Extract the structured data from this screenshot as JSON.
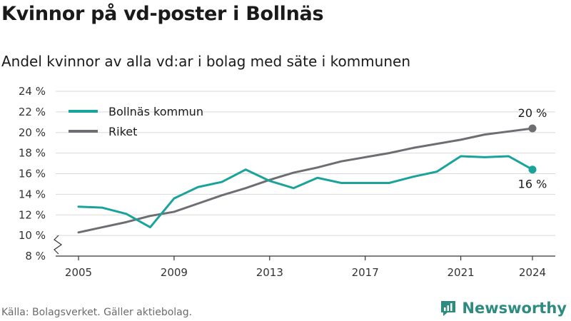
{
  "title": "Kvinnor på vd-poster i Bollnäs",
  "subtitle": "Andel kvinnor av alla vd:ar i bolag med säte i kommunen",
  "source": "Källa: Bolagsverket. Gäller aktiebolag.",
  "brand": {
    "name": "Newsworthy",
    "icon": "newsworthy-logo-icon"
  },
  "colors": {
    "bollnas": "#1aa39a",
    "riket": "#6e6d72",
    "grid": "#d9d9d9",
    "axis": "#333333"
  },
  "chart_data": {
    "type": "line",
    "ylim": [
      8,
      24
    ],
    "y_ticks": [
      8,
      10,
      12,
      14,
      16,
      18,
      20,
      22,
      24
    ],
    "y_tick_suffix": " %",
    "x_range": [
      2005,
      2024
    ],
    "x_ticks": [
      2005,
      2009,
      2013,
      2017,
      2021,
      2024
    ],
    "grid": true,
    "axis_break": true,
    "legend_position": "top-left",
    "x": [
      2005,
      2006,
      2007,
      2008,
      2009,
      2010,
      2011,
      2012,
      2013,
      2014,
      2015,
      2016,
      2017,
      2018,
      2019,
      2020,
      2021,
      2022,
      2023,
      2024
    ],
    "series": [
      {
        "name": "Bollnäs kommun",
        "color": "#1aa39a",
        "values": [
          12.8,
          12.7,
          12.1,
          10.8,
          13.6,
          14.7,
          15.2,
          16.4,
          15.3,
          14.6,
          15.6,
          15.1,
          15.1,
          15.1,
          15.7,
          16.2,
          17.7,
          17.6,
          17.7,
          16.4
        ],
        "end_label": "16 %"
      },
      {
        "name": "Riket",
        "color": "#6e6d72",
        "values": [
          10.3,
          10.8,
          11.3,
          11.9,
          12.3,
          13.1,
          13.9,
          14.6,
          15.4,
          16.1,
          16.6,
          17.2,
          17.6,
          18.0,
          18.5,
          18.9,
          19.3,
          19.8,
          20.1,
          20.4
        ],
        "end_label": "20 %"
      }
    ]
  }
}
